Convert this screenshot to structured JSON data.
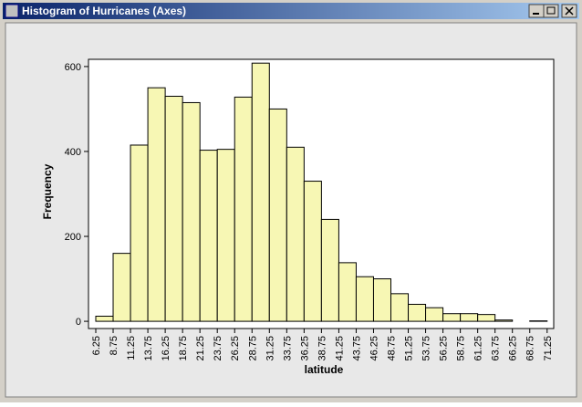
{
  "window": {
    "title": "Histogram of Hurricanes (Axes)"
  },
  "chart_data": {
    "type": "histogram",
    "xlabel": "latitude",
    "ylabel": "Frequency",
    "bins": [
      6.25,
      8.75,
      11.25,
      13.75,
      16.25,
      18.75,
      21.25,
      23.75,
      26.25,
      28.75,
      31.25,
      33.75,
      36.25,
      38.75,
      41.25,
      43.75,
      46.25,
      48.75,
      51.25,
      53.75,
      56.25,
      58.75,
      61.25,
      63.75,
      66.25,
      68.75,
      71.25
    ],
    "counts": [
      12,
      160,
      415,
      550,
      530,
      515,
      403,
      405,
      528,
      608,
      500,
      410,
      330,
      240,
      138,
      105,
      100,
      65,
      40,
      32,
      18,
      18,
      16,
      3,
      0,
      1
    ],
    "color": "#f7f7b4",
    "xlim": [
      5.2,
      72.2
    ],
    "xticks": [
      6.25,
      8.75,
      11.25,
      13.75,
      16.25,
      18.75,
      21.25,
      23.75,
      26.25,
      28.75,
      31.25,
      33.75,
      36.25,
      38.75,
      41.25,
      43.75,
      46.25,
      48.75,
      51.25,
      53.75,
      56.25,
      58.75,
      61.25,
      63.75,
      66.25,
      68.75,
      71.25
    ],
    "ylim": [
      -17,
      617
    ],
    "yticks": [
      0,
      200,
      400,
      600
    ]
  }
}
